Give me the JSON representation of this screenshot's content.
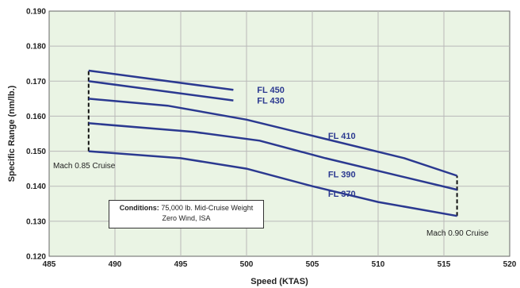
{
  "chart_data": {
    "type": "line",
    "title": "",
    "xlabel": "Speed (KTAS)",
    "ylabel": "Specific Range (nm/lb.)",
    "xlim": [
      485,
      520
    ],
    "ylim": [
      0.12,
      0.19
    ],
    "x_ticks": [
      "485",
      "490",
      "495",
      "500",
      "505",
      "510",
      "515",
      "520"
    ],
    "y_ticks": [
      "0.120",
      "0.130",
      "0.140",
      "0.150",
      "0.160",
      "0.170",
      "0.180",
      "0.190"
    ],
    "grid": true,
    "series": [
      {
        "name": "FL 450",
        "points": [
          [
            488,
            0.173
          ],
          [
            499,
            0.1675
          ]
        ]
      },
      {
        "name": "FL 430",
        "points": [
          [
            488,
            0.17
          ],
          [
            499,
            0.1645
          ]
        ]
      },
      {
        "name": "FL 410",
        "points": [
          [
            488,
            0.165
          ],
          [
            494,
            0.163
          ],
          [
            500,
            0.159
          ],
          [
            506,
            0.1535
          ],
          [
            512,
            0.148
          ],
          [
            516,
            0.143
          ]
        ]
      },
      {
        "name": "FL 390",
        "points": [
          [
            488,
            0.158
          ],
          [
            496,
            0.1555
          ],
          [
            501,
            0.153
          ],
          [
            506,
            0.148
          ],
          [
            511,
            0.1435
          ],
          [
            516,
            0.139
          ]
        ]
      },
      {
        "name": "FL 370",
        "points": [
          [
            488,
            0.15
          ],
          [
            495,
            0.148
          ],
          [
            500,
            0.145
          ],
          [
            505,
            0.14
          ],
          [
            510,
            0.1355
          ],
          [
            516,
            0.1315
          ]
        ]
      }
    ],
    "annotations": {
      "mach_085": "Mach 0.85 Cruise",
      "mach_090": "Mach 0.90 Cruise",
      "conditions_label": "Conditions:",
      "conditions_line1": "75,000 lb. Mid-Cruise Weight",
      "conditions_line2": "Zero Wind, ISA"
    },
    "mach_085_line": {
      "x": 488,
      "y_range": [
        0.15,
        0.173
      ]
    },
    "mach_090_line": {
      "x": 516,
      "y_range": [
        0.1315,
        0.143
      ]
    },
    "colors": {
      "series": "#2b3990",
      "plot_bg": "#eaf4e4",
      "grid": "#b9b9b9"
    }
  }
}
